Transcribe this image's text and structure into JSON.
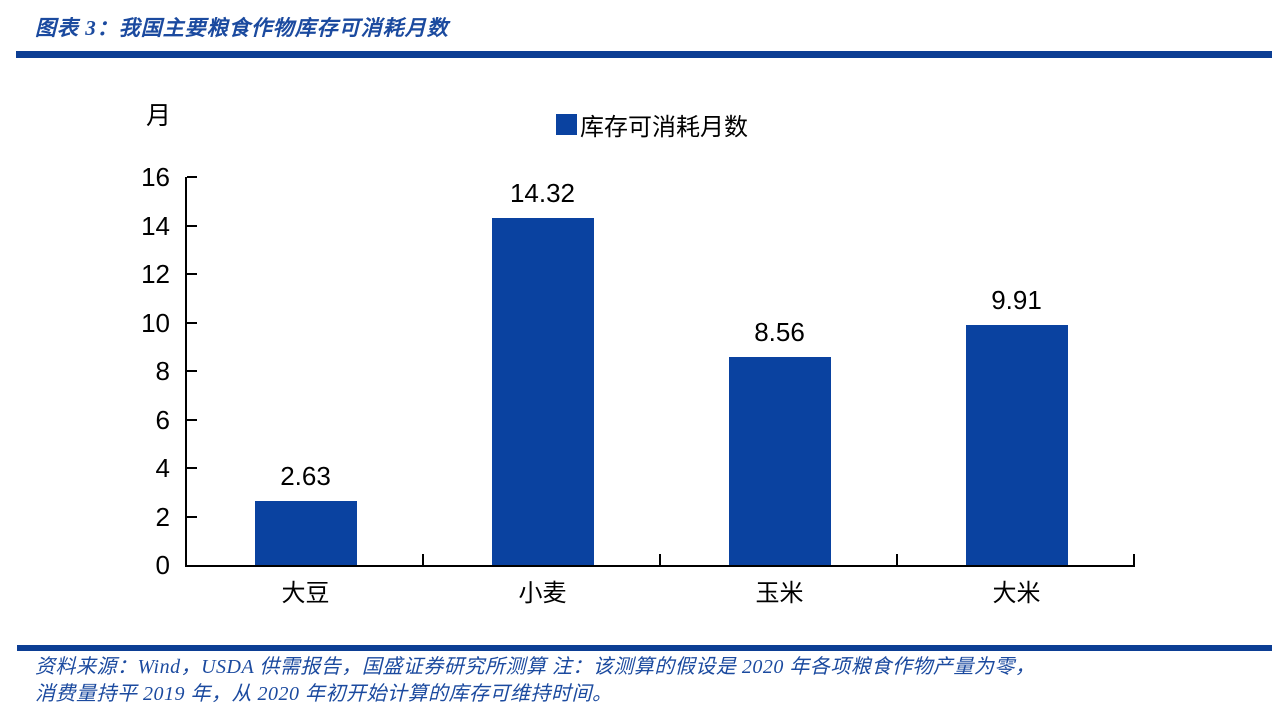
{
  "header": {
    "title": "图表 3：我国主要粮食作物库存可消耗月数"
  },
  "chart_data": {
    "type": "bar",
    "title": "我国主要粮食作物库存可消耗月数",
    "unit_label": "月",
    "legend_label": "库存可消耗月数",
    "legend_position": "top-center",
    "categories": [
      "大豆",
      "小麦",
      "玉米",
      "大米"
    ],
    "values": [
      2.63,
      14.32,
      8.56,
      9.91
    ],
    "value_labels": [
      "2.63",
      "14.32",
      "8.56",
      "9.91"
    ],
    "xlabel": "",
    "ylabel": "月",
    "ylim": [
      0,
      16
    ],
    "yticks": [
      0,
      2,
      4,
      6,
      8,
      10,
      12,
      14,
      16
    ],
    "grid": false,
    "bar_color": "#0A42A0"
  },
  "footer": {
    "line1": "资料来源：Wind，USDA 供需报告，国盛证券研究所测算 注：该测算的假设是 2020 年各项粮食作物产量为零，",
    "line2": "消费量持平 2019 年，从 2020 年初开始计算的库存可维持时间。"
  },
  "colors": {
    "accent_blue": "#0A42A0",
    "divider_blue": "#0C3E94",
    "text_blue": "#1B4A9F",
    "axis_black": "#000000"
  }
}
